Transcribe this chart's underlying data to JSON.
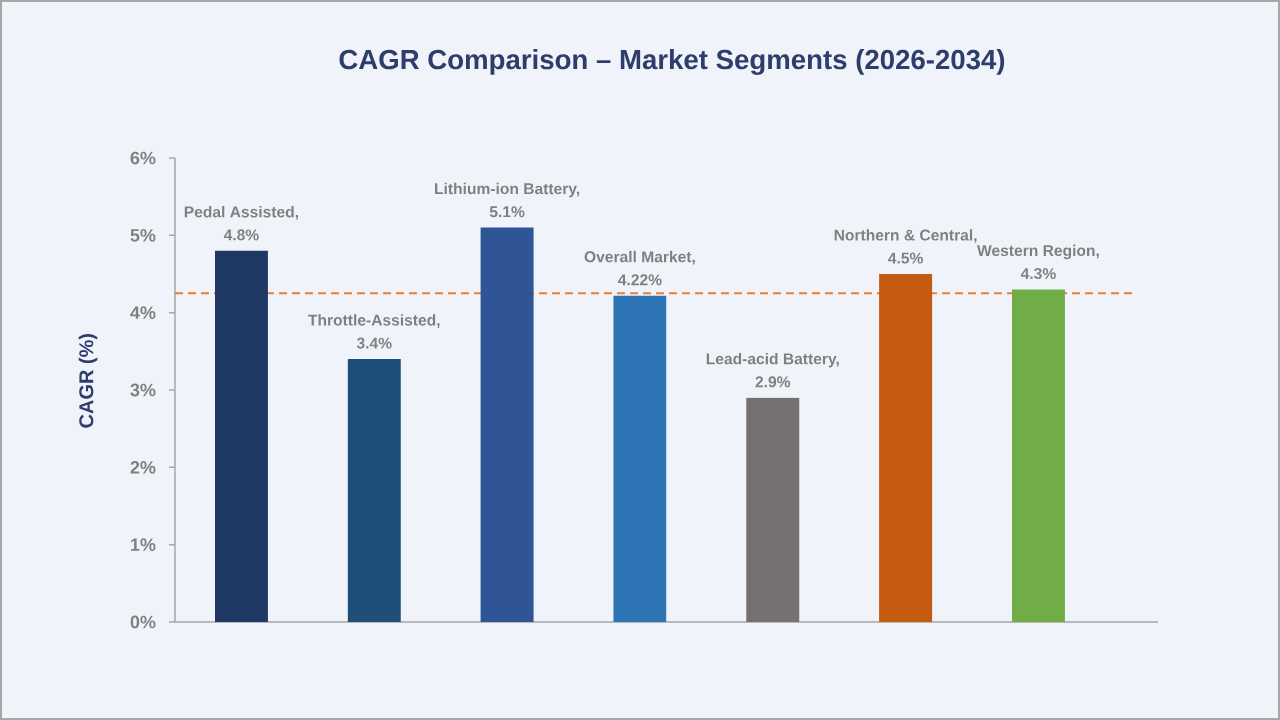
{
  "chart_data": {
    "type": "bar",
    "title": "CAGR Comparison – Market Segments (2026-2034)",
    "ylabel": "CAGR (%)",
    "categories": [
      null,
      null,
      null,
      null,
      null,
      null,
      null
    ],
    "values": [
      4.8,
      3.4,
      5.1,
      4.22,
      2.9,
      4.5,
      4.3
    ],
    "colors": [
      "#203864",
      "#1f4e79",
      "#2f5597",
      "#2e75b6",
      "#767171",
      "#c55a11",
      "#70ad47"
    ],
    "value_labels": [
      "Pedal Assisted, 4.8%",
      "Throttle-Assisted, 3.4%",
      "Lithium-ion Battery, 5.1%",
      "Overall Market, 4.22%",
      "Lead-acid Battery, 2.9%",
      "Northern & Central, 4.5%",
      "Western Region, 4.3%"
    ],
    "ylim": [
      0,
      6
    ],
    "yticks": [
      {
        "value": 0,
        "label": "0%"
      },
      {
        "value": 1,
        "label": "1%"
      },
      {
        "value": 2,
        "label": "2%"
      },
      {
        "value": 3,
        "label": "3%"
      },
      {
        "value": 4,
        "label": "4%"
      },
      {
        "value": 5,
        "label": "5%"
      },
      {
        "value": 6,
        "label": "6%"
      }
    ],
    "ref_lines": [
      {
        "axis": "y",
        "value": 4.25,
        "color": "#ed7d31",
        "line_style": "dashed"
      }
    ]
  }
}
